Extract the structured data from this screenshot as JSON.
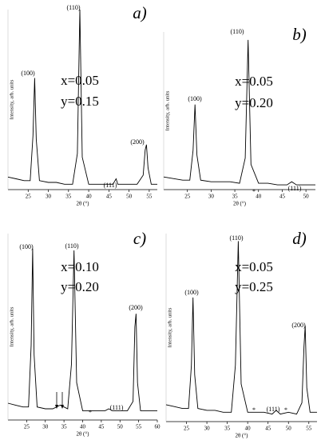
{
  "chart_data": [
    {
      "type": "line",
      "title": "a)",
      "annotations": [
        "x=0.05",
        "y=0.15"
      ],
      "xlabel": "2θ (°)",
      "ylabel": "Intensity, arb. units",
      "peak_labels": [
        "(100)",
        "(110)",
        "(111)",
        "(200)"
      ],
      "stars": [],
      "x": [
        20,
        22,
        24,
        25.5,
        26.2,
        26.6,
        27.0,
        27.8,
        30,
        32,
        34,
        36,
        37.2,
        37.8,
        38.4,
        40,
        42,
        44,
        46,
        46.8,
        47.2,
        48,
        50,
        52,
        53.5,
        54.0,
        54.3,
        54.7,
        55.5,
        57
      ],
      "values": [
        7,
        6,
        5,
        5,
        30,
        62,
        28,
        5,
        4,
        4,
        3,
        3,
        20,
        100,
        18,
        3,
        3,
        3,
        3,
        6,
        3,
        3,
        3,
        3,
        8,
        22,
        25,
        12,
        3,
        3
      ],
      "color": "#000000",
      "xlim": [
        20,
        57
      ],
      "xticks": [
        25,
        30,
        35,
        40,
        45,
        50,
        55
      ],
      "ylim": [
        0,
        100
      ]
    },
    {
      "type": "line",
      "title": "b)",
      "annotations": [
        "x=0.05",
        "y=0.20"
      ],
      "xlabel": "2θ (°)",
      "ylabel": "Intensity, arb. units",
      "peak_labels": [
        "(100)",
        "(110)",
        "(111)"
      ],
      "stars": [
        "*"
      ],
      "x": [
        20,
        22,
        24,
        25.5,
        26.2,
        26.6,
        27.0,
        27.8,
        30,
        32,
        34,
        36,
        37.2,
        37.8,
        38.4,
        40,
        42,
        44,
        46,
        47,
        48,
        50,
        52
      ],
      "values": [
        8,
        7,
        6,
        6,
        25,
        54,
        22,
        6,
        5,
        5,
        5,
        4,
        20,
        95,
        16,
        4,
        4,
        3,
        3,
        5,
        3,
        3,
        3
      ],
      "color": "#000000",
      "xlim": [
        20,
        52
      ],
      "xticks": [
        25,
        30,
        35,
        40,
        45,
        50
      ],
      "ylim": [
        0,
        100
      ]
    },
    {
      "type": "line",
      "title": "c)",
      "annotations": [
        "x=0.10",
        "y=0.20"
      ],
      "xlabel": "2θ (°)",
      "ylabel": "Intensity, arb. units",
      "peak_labels": [
        "(100)",
        "(110)",
        "(111)",
        "(200)"
      ],
      "stars": [
        "*"
      ],
      "x": [
        20,
        22,
        24,
        25.5,
        26.2,
        26.6,
        27.0,
        27.8,
        30,
        32,
        34,
        35,
        36,
        37.0,
        37.7,
        38.4,
        40,
        42,
        44,
        46,
        47,
        48,
        50,
        52,
        53.5,
        54.0,
        54.3,
        54.7,
        55.5,
        58,
        60
      ],
      "values": [
        9,
        8,
        7,
        7,
        40,
        92,
        35,
        7,
        6,
        6,
        8,
        7,
        6,
        30,
        91,
        20,
        5,
        5,
        5,
        5,
        6,
        5,
        5,
        5,
        10,
        50,
        57,
        20,
        5,
        5,
        5
      ],
      "color": "#000000",
      "xlim": [
        20,
        60
      ],
      "xticks": [
        25,
        30,
        35,
        40,
        45,
        50,
        55,
        60
      ],
      "ylim": [
        0,
        100
      ]
    },
    {
      "type": "line",
      "title": "d)",
      "annotations": [
        "x=0.05",
        "y=0.25"
      ],
      "xlabel": "2θ (°)",
      "ylabel": "Intensity, arb. units",
      "peak_labels": [
        "(100)",
        "(110)",
        "(111)",
        "(200)"
      ],
      "stars": [
        "*",
        "*"
      ],
      "x": [
        20,
        22,
        24,
        25.5,
        26.2,
        26.6,
        27.0,
        27.8,
        30,
        32,
        34,
        36,
        37.0,
        37.7,
        38.4,
        40,
        42,
        44,
        46,
        47,
        48,
        50,
        52,
        53.3,
        53.8,
        54.1,
        54.5,
        55.3,
        57
      ],
      "values": [
        9,
        8,
        7,
        7,
        30,
        66,
        25,
        7,
        6,
        6,
        5,
        5,
        30,
        96,
        20,
        5,
        5,
        5,
        4,
        6,
        4,
        5,
        4,
        10,
        40,
        51,
        18,
        5,
        5
      ],
      "color": "#000000",
      "xlim": [
        20,
        57
      ],
      "xticks": [
        25,
        30,
        35,
        40,
        45,
        50,
        55
      ],
      "ylim": [
        0,
        100
      ]
    }
  ]
}
